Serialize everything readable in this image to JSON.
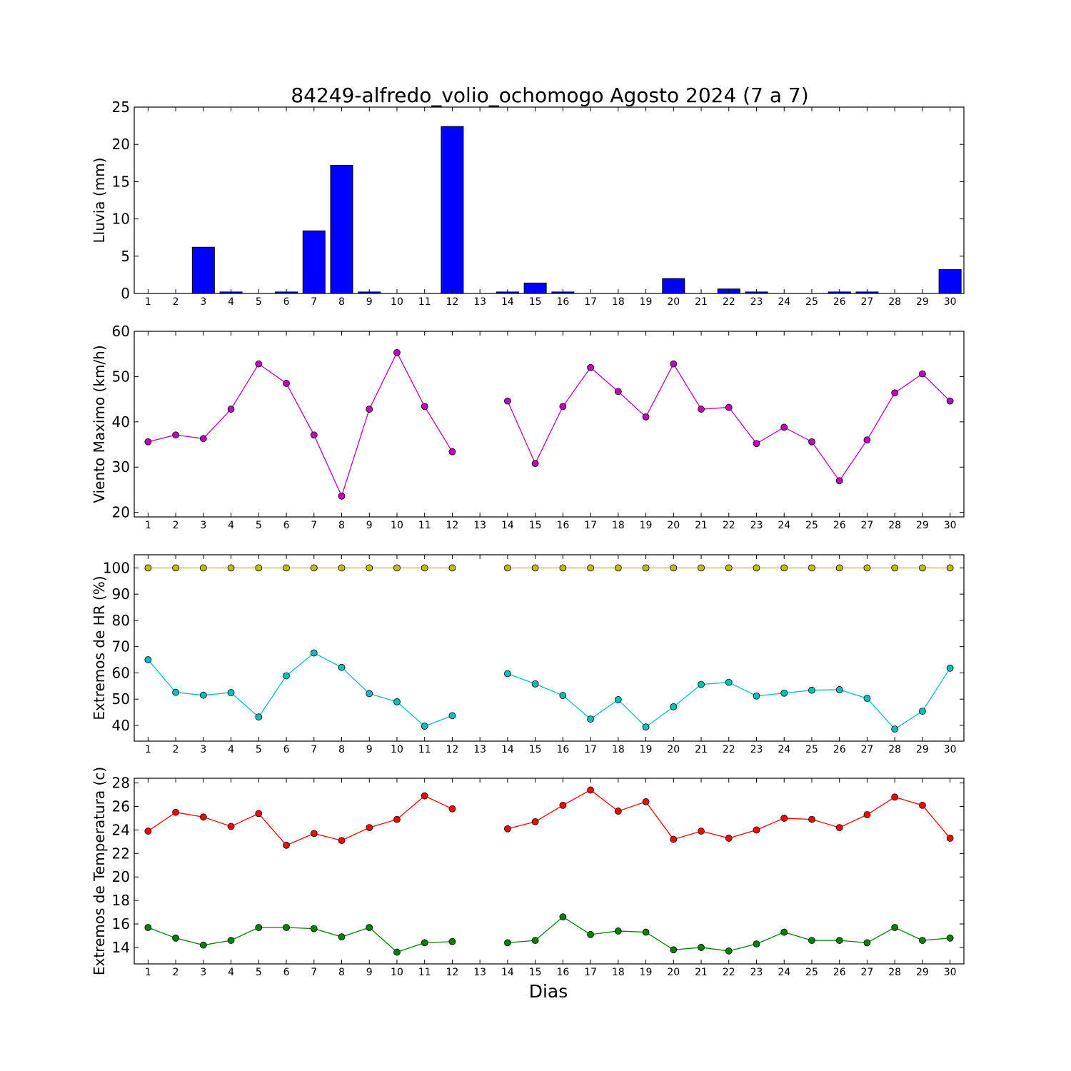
{
  "figure": {
    "title": "84249-alfredo_volio_ochomogo Agosto 2024  (7 a 7)",
    "xlabel": "Dias"
  },
  "chart_data": [
    {
      "type": "bar",
      "ylabel": "Lluvia (mm)",
      "ylim": [
        0,
        25
      ],
      "yticks": [
        0,
        5,
        10,
        15,
        20,
        25
      ],
      "x": [
        1,
        2,
        3,
        4,
        5,
        6,
        7,
        8,
        9,
        10,
        11,
        12,
        13,
        14,
        15,
        16,
        17,
        18,
        19,
        20,
        21,
        22,
        23,
        24,
        25,
        26,
        27,
        28,
        29,
        30
      ],
      "xlim": [
        0.5,
        30.5
      ],
      "series": [
        {
          "color": "#0000ff",
          "values": [
            0,
            0,
            6.2,
            0.2,
            0,
            0.2,
            8.4,
            17.2,
            0.2,
            0,
            0,
            22.4,
            null,
            0.2,
            1.4,
            0.2,
            0,
            0,
            0,
            2.0,
            0,
            0.6,
            0.2,
            0,
            0,
            0.2,
            0.2,
            0,
            0,
            3.2
          ]
        }
      ]
    },
    {
      "type": "line",
      "ylabel": "Viento Maximo (km/h)",
      "ylim": [
        19,
        60
      ],
      "yticks": [
        20,
        30,
        40,
        50,
        60
      ],
      "x": [
        1,
        2,
        3,
        4,
        5,
        6,
        7,
        8,
        9,
        10,
        11,
        12,
        13,
        14,
        15,
        16,
        17,
        18,
        19,
        20,
        21,
        22,
        23,
        24,
        25,
        26,
        27,
        28,
        29,
        30
      ],
      "xlim": [
        0.5,
        30.5
      ],
      "series": [
        {
          "color": "#bf00bf",
          "values": [
            35.6,
            37.1,
            36.3,
            42.8,
            52.8,
            48.5,
            37.1,
            23.6,
            42.8,
            55.3,
            43.4,
            33.4,
            null,
            44.6,
            30.8,
            43.4,
            52.0,
            46.7,
            41.1,
            52.8,
            42.8,
            43.2,
            35.2,
            38.8,
            35.6,
            27.0,
            36.0,
            46.4,
            50.6,
            44.6
          ]
        }
      ]
    },
    {
      "type": "line",
      "ylabel": "Extremos de HR (%)",
      "ylim": [
        34,
        105
      ],
      "yticks": [
        40,
        50,
        60,
        70,
        80,
        90,
        100
      ],
      "x": [
        1,
        2,
        3,
        4,
        5,
        6,
        7,
        8,
        9,
        10,
        11,
        12,
        13,
        14,
        15,
        16,
        17,
        18,
        19,
        20,
        21,
        22,
        23,
        24,
        25,
        26,
        27,
        28,
        29,
        30
      ],
      "xlim": [
        0.5,
        30.5
      ],
      "series": [
        {
          "color": "#bfbf00",
          "values": [
            100,
            100,
            100,
            100,
            100,
            100,
            100,
            100,
            100,
            100,
            100,
            100,
            null,
            100,
            100,
            100,
            100,
            100,
            100,
            100,
            100,
            100,
            100,
            100,
            100,
            100,
            100,
            100,
            100,
            100
          ]
        },
        {
          "color": "#00bfbf",
          "values": [
            65.0,
            52.6,
            51.5,
            52.5,
            43.2,
            58.9,
            67.6,
            62.1,
            52.1,
            49.0,
            39.7,
            43.7,
            null,
            59.7,
            55.8,
            51.4,
            42.4,
            49.8,
            39.4,
            47.1,
            55.6,
            56.4,
            51.2,
            52.3,
            53.4,
            53.6,
            50.3,
            38.6,
            45.4,
            61.8
          ]
        }
      ]
    },
    {
      "type": "line",
      "ylabel": "Extremos de Temperatura (c)",
      "ylim": [
        12.6,
        28.4
      ],
      "yticks": [
        14,
        16,
        18,
        20,
        22,
        24,
        26,
        28
      ],
      "x": [
        1,
        2,
        3,
        4,
        5,
        6,
        7,
        8,
        9,
        10,
        11,
        12,
        13,
        14,
        15,
        16,
        17,
        18,
        19,
        20,
        21,
        22,
        23,
        24,
        25,
        26,
        27,
        28,
        29,
        30
      ],
      "xlim": [
        0.5,
        30.5
      ],
      "series": [
        {
          "color": "#ff0000",
          "values": [
            23.9,
            25.5,
            25.1,
            24.3,
            25.4,
            22.7,
            23.7,
            23.1,
            24.2,
            24.9,
            26.9,
            25.8,
            null,
            24.1,
            24.7,
            26.1,
            27.4,
            25.6,
            26.4,
            23.2,
            23.9,
            23.3,
            24.0,
            25.0,
            24.9,
            24.2,
            25.3,
            26.8,
            26.1,
            23.3
          ]
        },
        {
          "color": "#008000",
          "values": [
            15.7,
            14.8,
            14.2,
            14.6,
            15.7,
            15.7,
            15.6,
            14.9,
            15.7,
            13.6,
            14.4,
            14.5,
            null,
            14.4,
            14.6,
            16.6,
            15.1,
            15.4,
            15.3,
            13.8,
            14.0,
            13.7,
            14.3,
            15.3,
            14.6,
            14.6,
            14.4,
            15.7,
            14.6,
            14.8
          ]
        }
      ]
    }
  ]
}
